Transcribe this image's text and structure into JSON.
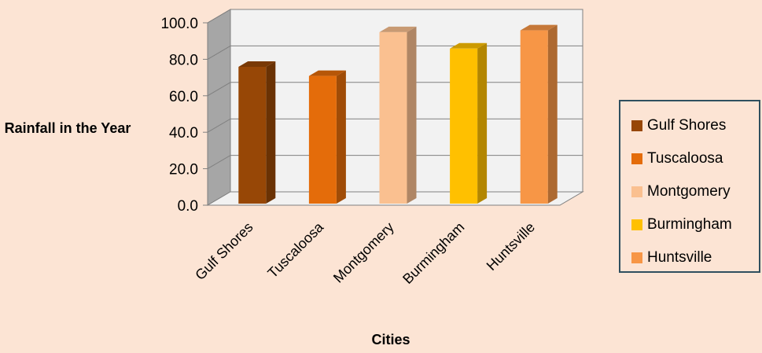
{
  "chart_data": {
    "type": "bar",
    "categories": [
      "Gulf Shores",
      "Tuscaloosa",
      "Montgomery",
      "Burmingham",
      "Huntsville"
    ],
    "values": [
      75,
      70,
      94,
      85,
      95
    ],
    "colors": [
      "#974706",
      "#e46c0a",
      "#fac090",
      "#ffc000",
      "#f79646"
    ],
    "xlabel": "Cities",
    "ylabel": "Rainfall in the Year",
    "ylim": [
      0,
      100
    ],
    "yticks": [
      "0.0",
      "20.0",
      "40.0",
      "60.0",
      "80.0",
      "100.0"
    ],
    "legend": [
      "Gulf Shores",
      "Tuscaloosa",
      "Montgomery",
      "Burmingham",
      "Huntsville"
    ],
    "legend_position": "right",
    "grid": true
  }
}
